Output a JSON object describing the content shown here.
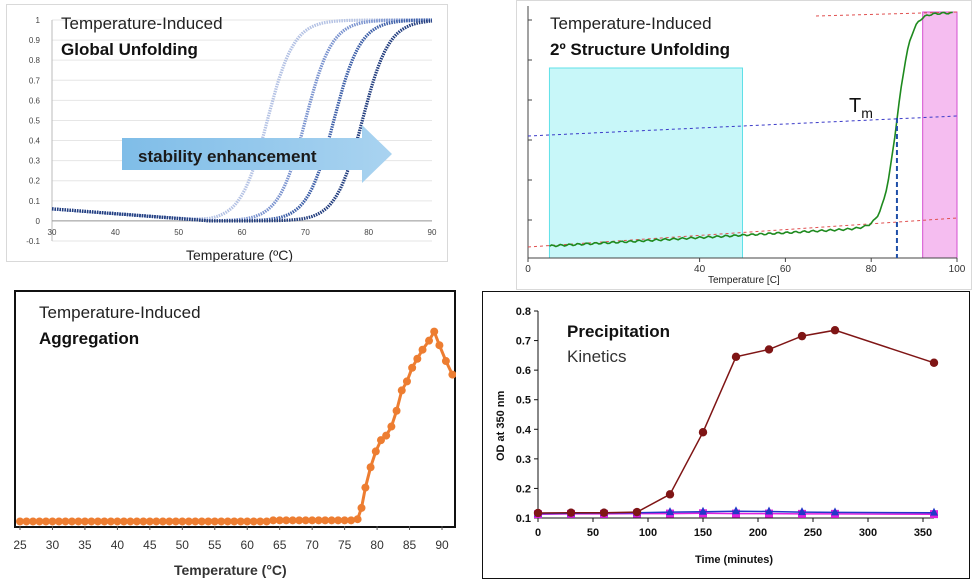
{
  "chart_data": [
    {
      "type": "line",
      "title_line1": "Temperature-Induced",
      "title_line2": "Global Unfolding",
      "xlabel": "Temperature  (ºC)",
      "xlim": [
        30,
        90
      ],
      "ylim": [
        -0.1,
        1
      ],
      "x_ticks": [
        "30",
        "40",
        "50",
        "60",
        "70",
        "80",
        "90"
      ],
      "y_ticks": [
        "-0.1",
        "0",
        "0.1",
        "0.2",
        "0.3",
        "0.4",
        "0.5",
        "0.6",
        "0.7",
        "0.8",
        "0.9",
        "1"
      ],
      "annotation": "stability enhancement",
      "colors": [
        "#b4c2e4",
        "#7a93cf",
        "#3d5fa8",
        "#223d7e"
      ],
      "series": [
        {
          "midpoint": 64,
          "color": "#b4c2e4"
        },
        {
          "midpoint": 70,
          "color": "#7a93cf"
        },
        {
          "midpoint": 74.5,
          "color": "#3d5fa8"
        },
        {
          "midpoint": 79,
          "color": "#223d7e"
        }
      ]
    },
    {
      "type": "line",
      "title_line1": "Temperature-Induced",
      "title_line2": "2º Structure Unfolding",
      "xlabel": "Temperature [C]",
      "xlim": [
        0,
        100
      ],
      "x_ticks": [
        "0",
        "40",
        "60",
        "80",
        "100"
      ],
      "annotation": "T",
      "annotation_sub": "m",
      "tm": 86,
      "regions": [
        {
          "from": 5,
          "to": 50,
          "color": "#c8f7f9"
        },
        {
          "from": 92,
          "to": 100,
          "color": "#f5bdf0"
        }
      ],
      "line_color": "#1e8a1e"
    },
    {
      "type": "line",
      "title_line1": "Temperature-Induced",
      "title_line2": "Aggregation",
      "xlabel": "Temperature (°C)",
      "xlim": [
        25,
        92
      ],
      "x_ticks": [
        "25",
        "30",
        "35",
        "40",
        "45",
        "50",
        "55",
        "60",
        "65",
        "70",
        "75",
        "80",
        "85",
        "90"
      ],
      "color": "#ed7d31",
      "x": [
        25,
        26,
        27,
        28,
        29,
        30,
        31,
        32,
        33,
        34,
        35,
        36,
        37,
        38,
        39,
        40,
        41,
        42,
        43,
        44,
        45,
        46,
        47,
        48,
        49,
        50,
        51,
        52,
        53,
        54,
        55,
        56,
        57,
        58,
        59,
        60,
        61,
        62,
        63,
        64,
        65,
        66,
        67,
        68,
        69,
        70,
        71,
        72,
        73,
        74,
        75,
        76,
        77,
        77.6,
        78.2,
        79,
        79.8,
        80.6,
        81.4,
        82.2,
        83,
        83.8,
        84.6,
        85.4,
        86.2,
        87,
        88,
        88.8,
        89.6,
        90.6,
        91.6
      ],
      "values": [
        0.02,
        0.02,
        0.02,
        0.02,
        0.02,
        0.02,
        0.02,
        0.02,
        0.02,
        0.02,
        0.02,
        0.02,
        0.02,
        0.02,
        0.02,
        0.02,
        0.02,
        0.02,
        0.02,
        0.02,
        0.02,
        0.02,
        0.02,
        0.02,
        0.02,
        0.02,
        0.02,
        0.02,
        0.02,
        0.02,
        0.02,
        0.02,
        0.02,
        0.02,
        0.02,
        0.02,
        0.02,
        0.02,
        0.02,
        0.025,
        0.025,
        0.025,
        0.025,
        0.025,
        0.025,
        0.025,
        0.025,
        0.025,
        0.025,
        0.025,
        0.025,
        0.025,
        0.03,
        0.08,
        0.17,
        0.26,
        0.33,
        0.38,
        0.4,
        0.44,
        0.51,
        0.6,
        0.64,
        0.7,
        0.74,
        0.78,
        0.82,
        0.86,
        0.8,
        0.73,
        0.67
      ]
    },
    {
      "type": "line",
      "title_line1": "Precipitation",
      "title_line2": "Kinetics",
      "xlabel": "Time (minutes)",
      "ylabel": "OD at 350 nm",
      "xlim": [
        0,
        360
      ],
      "ylim": [
        0.1,
        0.8
      ],
      "x_ticks": [
        "0",
        "50",
        "100",
        "150",
        "200",
        "250",
        "300",
        "350"
      ],
      "y_ticks": [
        "0.1",
        "0.2",
        "0.3",
        "0.4",
        "0.5",
        "0.6",
        "0.7",
        "0.8"
      ],
      "x": [
        0,
        30,
        60,
        90,
        120,
        150,
        180,
        210,
        240,
        270,
        360
      ],
      "series": [
        {
          "color": "#7f1515",
          "values": [
            0.117,
            0.118,
            0.118,
            0.12,
            0.18,
            0.39,
            0.645,
            0.67,
            0.715,
            0.735,
            0.625
          ]
        },
        {
          "color": "#2238c8",
          "values": [
            0.115,
            0.116,
            0.117,
            0.118,
            0.12,
            0.121,
            0.123,
            0.122,
            0.12,
            0.119,
            0.118
          ]
        },
        {
          "color": "#e020e0",
          "values": [
            0.113,
            0.114,
            0.114,
            0.115,
            0.115,
            0.116,
            0.115,
            0.115,
            0.114,
            0.114,
            0.113
          ]
        }
      ]
    }
  ]
}
